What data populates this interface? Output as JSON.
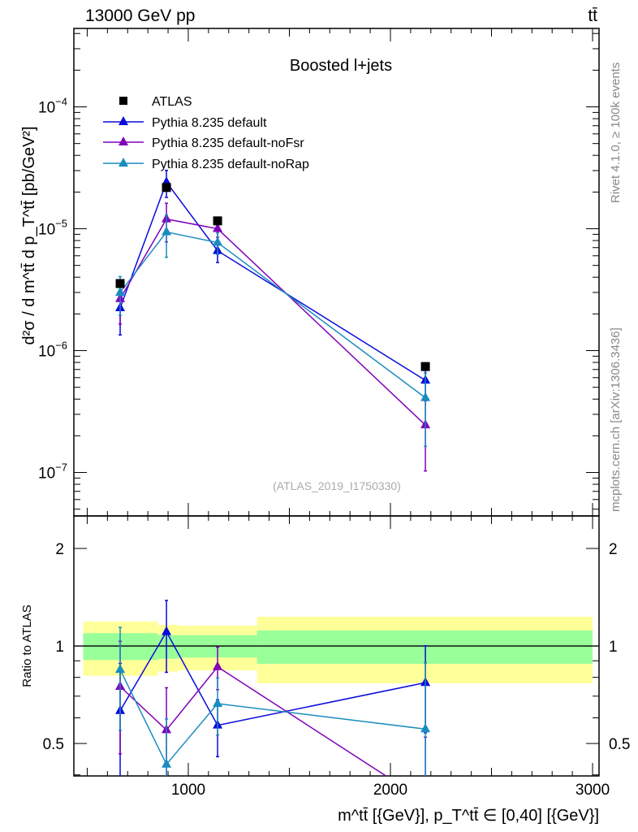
{
  "header": {
    "left": "13000 GeV pp",
    "right": "tt̄"
  },
  "side": {
    "rivet": "Rivet 4.1.0, ≥ 100k events",
    "mcplots": "mcplots.cern.ch [arXiv:1306.3436]"
  },
  "chart_data": {
    "type": "line",
    "title": "Boosted l+jets",
    "watermark": "(ATLAS_2019_I1750330)",
    "ylabel": "d²σ / d m^tt̄ d p_T^tt̄ [pb/GeV²]",
    "xlabel": "m^tt̄ [{GeV}], p_T^tt̄ ∈ [0,40] [{GeV}]",
    "ratio_ylabel": "Ratio to ATLAS",
    "xlim": [
      434,
      3032
    ],
    "ylim": [
      4.4e-08,
      0.00044
    ],
    "yscale": "log",
    "ratio_ylim": [
      0.397,
      2.52
    ],
    "ratio_yscale": "log",
    "xticks": [
      {
        "v": 1000,
        "label": "1000"
      },
      {
        "v": 2000,
        "label": "2000"
      },
      {
        "v": 3000,
        "label": "3000"
      }
    ],
    "yticks": [
      {
        "v": 0.0001,
        "base": "10",
        "exp": "−4"
      },
      {
        "v": 1e-05,
        "base": "10",
        "exp": "−5"
      },
      {
        "v": 1e-06,
        "base": "10",
        "exp": "−6"
      },
      {
        "v": 1e-07,
        "base": "10",
        "exp": "−7"
      }
    ],
    "ratio_yticks": [
      {
        "v": 2,
        "label": "2"
      },
      {
        "v": 1,
        "label": "1"
      },
      {
        "v": 0.5,
        "label": "0.5"
      }
    ],
    "legend_position": "top-left",
    "bins": [
      [
        480,
        850
      ],
      [
        850,
        950
      ],
      [
        950,
        1340
      ],
      [
        1340,
        3000
      ]
    ],
    "x": [
      663,
      892,
      1145,
      2173
    ],
    "data": {
      "name": "ATLAS",
      "color": "#000000",
      "y": [
        3.55e-06,
        2.18e-05,
        1.16e-05,
        7.4e-07
      ],
      "relerr": [
        0.08,
        0.08,
        0.06,
        0.05
      ],
      "band_stat": [
        [
          0.905,
          1.095
        ],
        [
          0.913,
          1.08
        ],
        [
          0.921,
          1.08
        ],
        [
          0.881,
          1.116
        ]
      ],
      "band_total": [
        [
          0.809,
          1.189
        ],
        [
          0.833,
          1.162
        ],
        [
          0.841,
          1.155
        ],
        [
          0.767,
          1.231
        ]
      ]
    },
    "series": [
      {
        "name": "Pythia 8.235 default",
        "color": "#0a0adc",
        "y": [
          2.24e-06,
          2.41e-05,
          6.6e-06,
          5.7e-07
        ],
        "relerr": [
          0.4,
          0.25,
          0.2,
          0.3
        ]
      },
      {
        "name": "Pythia 8.235 default-noFsr",
        "color": "#8000b8",
        "y": [
          2.66e-06,
          1.2e-05,
          1e-05,
          2.45e-07
        ],
        "relerr": [
          0.38,
          0.35,
          0.15,
          0.58
        ]
      },
      {
        "name": "Pythia 8.235 default-noRap",
        "color": "#1a8cbf",
        "y": [
          3e-06,
          9.4e-06,
          7.7e-06,
          4.1e-07
        ],
        "relerr": [
          0.35,
          0.38,
          0.2,
          0.6
        ]
      }
    ]
  }
}
